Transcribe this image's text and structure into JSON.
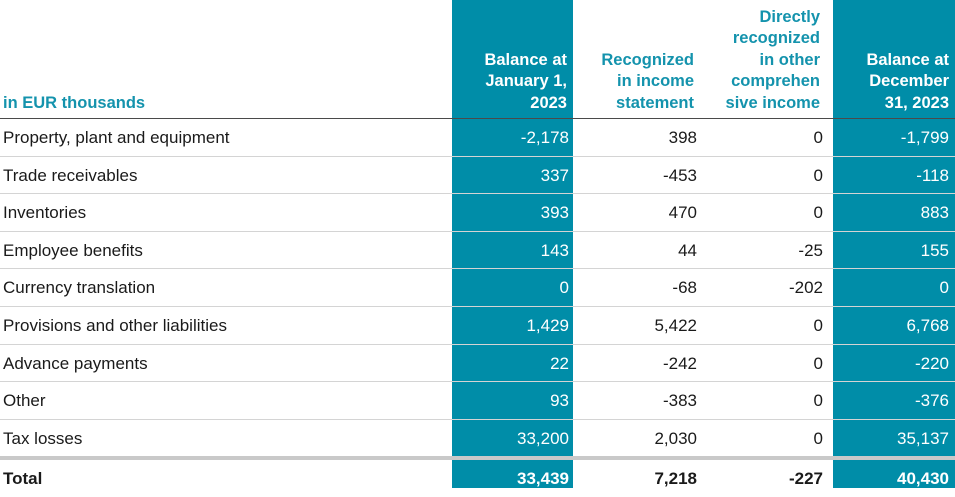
{
  "header": {
    "unit_label": "in EUR thousands",
    "col1": "Balance at\nJanuary 1,\n2023",
    "col2": "Recognized\nin income\nstatement",
    "col3": "Directly\nrecognized\nin other\ncomprehen\nsive income",
    "col4": "Balance at\nDecember\n31, 2023"
  },
  "rows": [
    {
      "label": "Property, plant and equipment",
      "v1": "-2,178",
      "v2": "398",
      "v3": "0",
      "v4": "-1,799"
    },
    {
      "label": "Trade receivables",
      "v1": "337",
      "v2": "-453",
      "v3": "0",
      "v4": "-118"
    },
    {
      "label": "Inventories",
      "v1": "393",
      "v2": "470",
      "v3": "0",
      "v4": "883"
    },
    {
      "label": "Employee benefits",
      "v1": "143",
      "v2": "44",
      "v3": "-25",
      "v4": "155"
    },
    {
      "label": "Currency translation",
      "v1": "0",
      "v2": "-68",
      "v3": "-202",
      "v4": "0"
    },
    {
      "label": "Provisions and other liabilities",
      "v1": "1,429",
      "v2": "5,422",
      "v3": "0",
      "v4": "6,768"
    },
    {
      "label": "Advance payments",
      "v1": "22",
      "v2": "-242",
      "v3": "0",
      "v4": "-220"
    },
    {
      "label": "Other",
      "v1": "93",
      "v2": "-383",
      "v3": "0",
      "v4": "-376"
    },
    {
      "label": "Tax losses",
      "v1": "33,200",
      "v2": "2,030",
      "v3": "0",
      "v4": "35,137"
    }
  ],
  "total": {
    "label": "Total",
    "v1": "33,439",
    "v2": "7,218",
    "v3": "-227",
    "v4": "40,430"
  },
  "colors": {
    "highlight_column": "#008da8",
    "header_text": "#1493ad"
  }
}
